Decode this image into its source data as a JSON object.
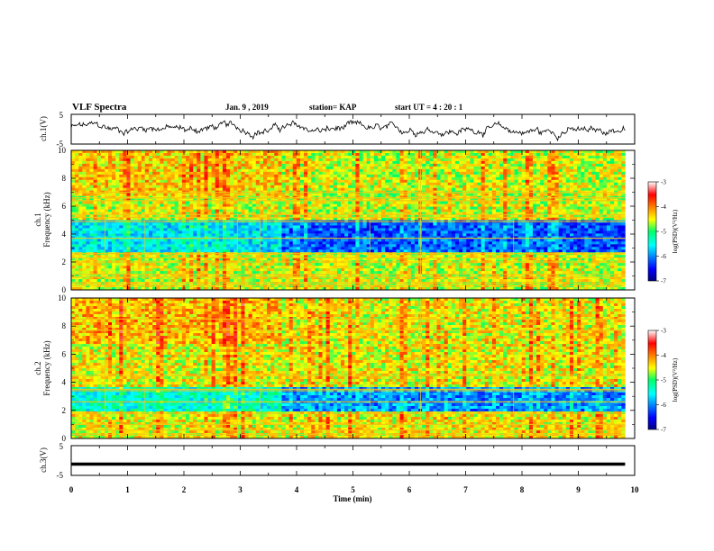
{
  "header": {
    "title": "VLF Spectra",
    "date": "Jan. 9 , 2019",
    "station": "station= KAP",
    "start": "start UT = 4 : 20 : 1"
  },
  "chart_data": [
    {
      "type": "line",
      "panel": "ch1-waveform",
      "ylabel": "ch.1(V)",
      "ylim": [
        -5,
        5
      ],
      "yticks": [
        5,
        -5
      ],
      "xlim": [
        0,
        10
      ],
      "x_extent": [
        0,
        9.83
      ],
      "approx_level": [
        0.5,
        -0.5
      ],
      "series_color": "#000000"
    },
    {
      "type": "heatmap",
      "panel": "ch1-spectrogram",
      "ylabel_channel": "ch.1",
      "ylabel_quantity": "Frequency (kHz)",
      "ylim": [
        0,
        10
      ],
      "yticks": [
        0,
        2,
        4,
        6,
        8,
        10
      ],
      "xlim": [
        0,
        10
      ],
      "x_extent": [
        0,
        9.83
      ],
      "colorbar": {
        "label": "log(PSD)(V²/Hz)",
        "range": [
          -7,
          -3
        ],
        "ticks": [
          -3,
          -4,
          -5,
          -6,
          -7
        ]
      },
      "regime_change_min": 3.75,
      "background_level": -4.6,
      "low_band_khz": [
        2.6,
        5.0
      ],
      "low_band_level": -6.2,
      "tone_lines_khz": [
        0.3,
        0.5,
        0.9,
        1.1,
        2.0,
        2.3,
        2.6,
        3.7,
        4.9,
        5.2,
        5.4,
        6.4,
        6.6,
        7.0
      ]
    },
    {
      "type": "heatmap",
      "panel": "ch2-spectrogram",
      "ylabel_channel": "ch.2",
      "ylabel_quantity": "Frequency (kHz)",
      "ylim": [
        0,
        10
      ],
      "yticks": [
        0,
        2,
        4,
        6,
        8,
        10
      ],
      "xlim": [
        0,
        10
      ],
      "x_extent": [
        0,
        9.83
      ],
      "colorbar": {
        "label": "log(PSD)(V²/Hz)",
        "range": [
          -7,
          -3
        ],
        "ticks": [
          -3,
          -4,
          -5,
          -6,
          -7
        ]
      },
      "regime_change_min": 3.75,
      "background_level": -4.5,
      "low_band_khz": [
        2.0,
        3.6
      ],
      "low_band_level": -6.0,
      "tone_lines_khz": [
        0.3,
        0.6,
        1.0,
        1.8,
        2.6,
        3.4,
        3.5,
        4.5,
        7.7,
        8.5
      ]
    },
    {
      "type": "line",
      "panel": "ch3-waveform",
      "ylabel": "ch.3(V)",
      "ylim": [
        -5,
        5
      ],
      "yticks": [
        5,
        -5
      ],
      "xlim": [
        0,
        10
      ],
      "x_extent": [
        0,
        9.83
      ],
      "approx_level": [
        -1.2,
        -1.2
      ],
      "series_color": "#000000"
    }
  ],
  "x_axis": {
    "label": "Time (min)",
    "ticks": [
      0,
      1,
      2,
      3,
      4,
      5,
      6,
      7,
      8,
      9,
      10
    ]
  }
}
